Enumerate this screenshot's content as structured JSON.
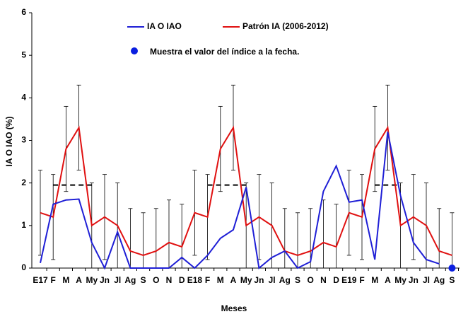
{
  "chart_data": {
    "type": "line",
    "y_label": "IA O IAO (%)",
    "x_label": "Meses",
    "categories": [
      "E17",
      "F",
      "M",
      "A",
      "My",
      "Jn",
      "Jl",
      "Ag",
      "S",
      "O",
      "N",
      "D",
      "E18",
      "F",
      "M",
      "A",
      "My",
      "Jn",
      "Jl",
      "Ag",
      "S",
      "O",
      "N",
      "D",
      "E19",
      "F",
      "M",
      "A",
      "My",
      "Jn",
      "Jl",
      "Ag",
      "S"
    ],
    "series": [
      {
        "name": "IA O IAO",
        "color": "#1f1fd6",
        "values": [
          0.12,
          1.5,
          1.6,
          1.62,
          0.6,
          0,
          0.85,
          0,
          0,
          0,
          0,
          0.25,
          0,
          0.3,
          0.7,
          0.9,
          1.9,
          0,
          0.25,
          0.4,
          0,
          0.15,
          1.8,
          2.4,
          1.55,
          1.6,
          0.2,
          3.2,
          1.7,
          0.6,
          0.2,
          0.1,
          null
        ]
      },
      {
        "name": "Patrón IA (2006-2012)",
        "color": "#e01010",
        "values": [
          1.3,
          1.2,
          2.8,
          3.3,
          1.0,
          1.2,
          1.0,
          0.4,
          0.3,
          0.4,
          0.6,
          0.5,
          1.3,
          1.2,
          2.8,
          3.3,
          1.0,
          1.2,
          1.0,
          0.4,
          0.3,
          0.4,
          0.6,
          0.5,
          1.3,
          1.2,
          2.8,
          3.3,
          1.0,
          1.2,
          1.0,
          0.4,
          0.3
        ],
        "errors": [
          1,
          1,
          1,
          1,
          1,
          1,
          1,
          1,
          1,
          1,
          1,
          1,
          1,
          1,
          1,
          1,
          1,
          1,
          1,
          1,
          1,
          1,
          1,
          1,
          1,
          1,
          1,
          1,
          1,
          1,
          1,
          1,
          1
        ]
      }
    ],
    "reference_values": [
      null,
      1.95,
      1.95,
      1.95,
      1.95,
      null,
      null,
      null,
      null,
      null,
      null,
      null,
      null,
      1.95,
      1.95,
      1.95,
      1.95,
      null,
      null,
      null,
      null,
      null,
      null,
      null,
      null,
      null,
      1.95,
      1.95,
      1.95,
      null,
      null,
      null,
      null
    ],
    "current_value": 0,
    "current_color": "#0a1ee0",
    "note": "Muestra el valor del índice a la fecha.",
    "ylim": [
      0,
      6
    ],
    "yticks": [
      0,
      1,
      2,
      3,
      4,
      5,
      6
    ]
  }
}
